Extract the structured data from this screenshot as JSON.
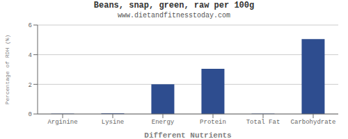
{
  "chart_data": {
    "type": "bar",
    "title": "Beans, snap, green, raw per 100g",
    "subtitle": "www.dietandfitnesstoday.com",
    "xlabel": "Different Nutrients",
    "ylabel": "Percentage of RDH (%)",
    "categories": [
      "Arginine",
      "Lysine",
      "Energy",
      "Protein",
      "Total Fat",
      "Carbohydrate"
    ],
    "values": [
      0.02,
      0.05,
      2.0,
      3.05,
      0.02,
      5.05
    ],
    "color": "#2e4d8f",
    "ylim": [
      0,
      6
    ],
    "yticks": [
      0,
      2,
      4,
      6
    ],
    "grid": true
  }
}
